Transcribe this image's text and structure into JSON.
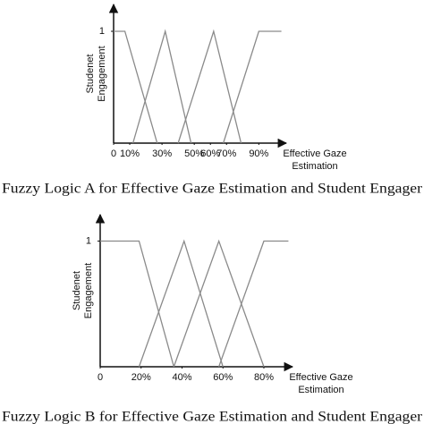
{
  "chart_data": [
    {
      "type": "line",
      "y_label": [
        "Studenet",
        "Engagement"
      ],
      "x_label": [
        "Effective Gaze",
        "Estimation"
      ],
      "caption": "Fuzzy Logic A for Effective Gaze Estimation and Student Engager",
      "xlim": [
        0,
        107
      ],
      "ylim": [
        0,
        1.24
      ],
      "xticks": [
        0,
        {
          "value": 10,
          "label": "10%"
        },
        {
          "value": 30,
          "label": "30%"
        },
        {
          "value": 50,
          "label": "50%"
        },
        {
          "value": 60,
          "label": "60%"
        },
        {
          "value": 70,
          "label": "70%"
        },
        {
          "value": 90,
          "label": "90%"
        }
      ],
      "yticks": [
        1
      ],
      "color": "#8a8a8a",
      "series": [
        {
          "x": [
            0,
            7,
            27
          ],
          "values": [
            1,
            1,
            0
          ]
        },
        {
          "x": [
            12,
            32,
            48
          ],
          "values": [
            0,
            1,
            0
          ]
        },
        {
          "x": [
            40,
            62,
            79
          ],
          "values": [
            0,
            1,
            0
          ]
        },
        {
          "x": [
            68,
            90,
            104
          ],
          "values": [
            0,
            1,
            1
          ]
        }
      ]
    },
    {
      "type": "line",
      "y_label": [
        "Studenet",
        "Engagement"
      ],
      "x_label": [
        "Effective Gaze",
        "Estimation"
      ],
      "caption": "Fuzzy Logic B for Effective Gaze Estimation and Student Engager",
      "xlim": [
        0,
        94
      ],
      "ylim": [
        0,
        1.21
      ],
      "xticks": [
        0,
        {
          "value": 20,
          "label": "20%"
        },
        {
          "value": 40,
          "label": "40%"
        },
        {
          "value": 60,
          "label": "60%"
        },
        {
          "value": 80,
          "label": "80%"
        }
      ],
      "yticks": [
        1
      ],
      "color": "#8a8a8a",
      "series": [
        {
          "x": [
            0,
            19,
            36
          ],
          "values": [
            1,
            1,
            0
          ]
        },
        {
          "x": [
            19,
            41,
            60
          ],
          "values": [
            0,
            1,
            0
          ]
        },
        {
          "x": [
            36,
            58,
            80
          ],
          "values": [
            0,
            1,
            0
          ]
        },
        {
          "x": [
            58,
            80,
            92
          ],
          "values": [
            0,
            1,
            1
          ]
        }
      ]
    }
  ]
}
